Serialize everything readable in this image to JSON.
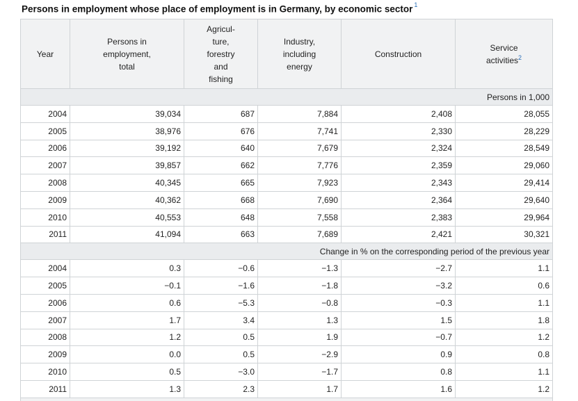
{
  "title": "Persons in employment whose place of employment is in Germany, by economic sector",
  "title_footnote": "1",
  "columns": {
    "year": "Year",
    "total": [
      "Persons in",
      "employment,",
      "total"
    ],
    "agri": [
      "Agricul-",
      "ture,",
      "forestry",
      "and",
      "fishing"
    ],
    "industry": [
      "Industry,",
      "including",
      "energy"
    ],
    "construction": "Construction",
    "services": [
      "Service",
      "activities"
    ],
    "services_footnote": "2"
  },
  "section_1": {
    "label": "Persons in 1,000",
    "rows": [
      [
        "2004",
        "39,034",
        "687",
        "7,884",
        "2,408",
        "28,055"
      ],
      [
        "2005",
        "38,976",
        "676",
        "7,741",
        "2,330",
        "28,229"
      ],
      [
        "2006",
        "39,192",
        "640",
        "7,679",
        "2,324",
        "28,549"
      ],
      [
        "2007",
        "39,857",
        "662",
        "7,776",
        "2,359",
        "29,060"
      ],
      [
        "2008",
        "40,345",
        "665",
        "7,923",
        "2,343",
        "29,414"
      ],
      [
        "2009",
        "40,362",
        "668",
        "7,690",
        "2,364",
        "29,640"
      ],
      [
        "2010",
        "40,553",
        "648",
        "7,558",
        "2,383",
        "29,964"
      ],
      [
        "2011",
        "41,094",
        "663",
        "7,689",
        "2,421",
        "30,321"
      ]
    ]
  },
  "section_2": {
    "label": "Change in % on the corresponding period of the previous year",
    "rows": [
      [
        "2004",
        "0.3",
        "−0.6",
        "−1.3",
        "−2.7",
        "1.1"
      ],
      [
        "2005",
        "−0.1",
        "−1.6",
        "−1.8",
        "−3.2",
        "0.6"
      ],
      [
        "2006",
        "0.6",
        "−5.3",
        "−0.8",
        "−0.3",
        "1.1"
      ],
      [
        "2007",
        "1.7",
        "3.4",
        "1.3",
        "1.5",
        "1.8"
      ],
      [
        "2008",
        "1.2",
        "0.5",
        "1.9",
        "−0.7",
        "1.2"
      ],
      [
        "2009",
        "0.0",
        "0.5",
        "−2.9",
        "0.9",
        "0.8"
      ],
      [
        "2010",
        "0.5",
        "−3.0",
        "−1.7",
        "0.8",
        "1.1"
      ],
      [
        "2011",
        "1.3",
        "2.3",
        "1.7",
        "1.6",
        "1.2"
      ]
    ]
  }
}
